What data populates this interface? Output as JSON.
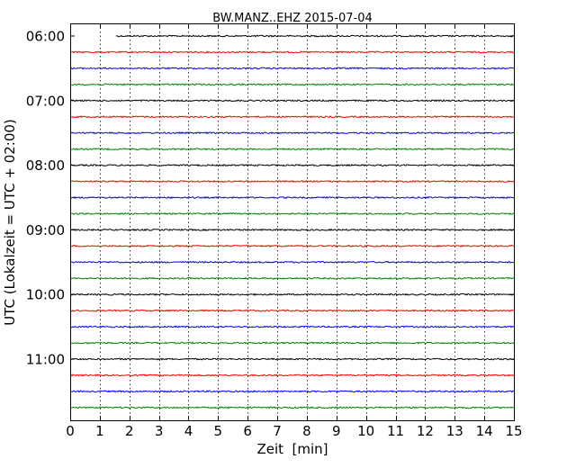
{
  "chart_data": {
    "type": "line",
    "title": "BW.MANZ..EHZ 2015-07-04",
    "xlabel": "Zeit  [min]",
    "ylabel": "UTC (Lokalzeit = UTC + 02:00)",
    "xlim": [
      0,
      15
    ],
    "x_ticks": [
      0,
      1,
      2,
      3,
      4,
      5,
      6,
      7,
      8,
      9,
      10,
      11,
      12,
      13,
      14,
      15
    ],
    "y_ticks": [
      "06:00",
      "07:00",
      "08:00",
      "09:00",
      "10:00",
      "11:00"
    ],
    "grid_x": true,
    "grid_style": "dotted",
    "trace_colors": [
      "#000000",
      "#ff0000",
      "#0000ff",
      "#008000"
    ],
    "traces": [
      {
        "start": "06:00",
        "x_start": 1.55,
        "x_end": 15
      },
      {
        "start": "06:15",
        "x_start": 0,
        "x_end": 15
      },
      {
        "start": "06:30",
        "x_start": 0,
        "x_end": 15
      },
      {
        "start": "06:45",
        "x_start": 0,
        "x_end": 15
      },
      {
        "start": "07:00",
        "x_start": 0,
        "x_end": 15
      },
      {
        "start": "07:15",
        "x_start": 0,
        "x_end": 15
      },
      {
        "start": "07:30",
        "x_start": 0,
        "x_end": 15
      },
      {
        "start": "07:45",
        "x_start": 0,
        "x_end": 15
      },
      {
        "start": "08:00",
        "x_start": 0,
        "x_end": 15
      },
      {
        "start": "08:15",
        "x_start": 0,
        "x_end": 15
      },
      {
        "start": "08:30",
        "x_start": 0,
        "x_end": 15
      },
      {
        "start": "08:45",
        "x_start": 0,
        "x_end": 15
      },
      {
        "start": "09:00",
        "x_start": 0,
        "x_end": 15
      },
      {
        "start": "09:15",
        "x_start": 0,
        "x_end": 15
      },
      {
        "start": "09:30",
        "x_start": 0,
        "x_end": 15
      },
      {
        "start": "09:45",
        "x_start": 0,
        "x_end": 15
      },
      {
        "start": "10:00",
        "x_start": 0,
        "x_end": 15
      },
      {
        "start": "10:15",
        "x_start": 0,
        "x_end": 15
      },
      {
        "start": "10:30",
        "x_start": 0,
        "x_end": 15
      },
      {
        "start": "10:45",
        "x_start": 0,
        "x_end": 15
      },
      {
        "start": "11:00",
        "x_start": 0,
        "x_end": 15
      },
      {
        "start": "11:15",
        "x_start": 0,
        "x_end": 15
      },
      {
        "start": "11:30",
        "x_start": 0,
        "x_end": 15
      },
      {
        "start": "11:45",
        "x_start": 0,
        "x_end": 15
      }
    ]
  }
}
